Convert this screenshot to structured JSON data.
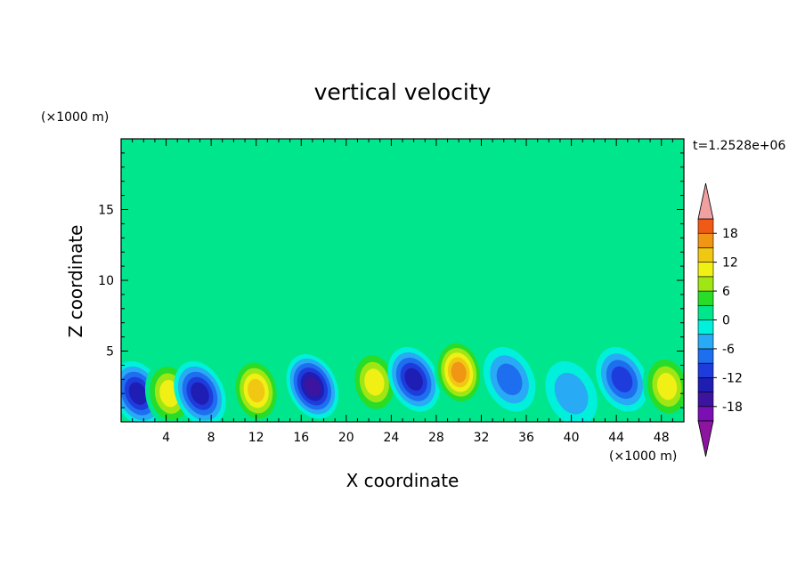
{
  "chart_data": {
    "type": "heatmap",
    "title": "vertical velocity",
    "xlabel": "X coordinate",
    "ylabel": "Z coordinate",
    "x_unit": "(×1000 m)",
    "y_unit": "(×1000 m)",
    "time_label": "t=1.2528e+06",
    "xlim": [
      0,
      50
    ],
    "ylim": [
      0,
      20
    ],
    "x_ticks": [
      "4",
      "8",
      "12",
      "16",
      "20",
      "24",
      "28",
      "32",
      "36",
      "40",
      "44",
      "48"
    ],
    "x_tick_values": [
      4,
      8,
      12,
      16,
      20,
      24,
      28,
      32,
      36,
      40,
      44,
      48
    ],
    "y_ticks": [
      "5",
      "10",
      "15"
    ],
    "y_tick_values": [
      5,
      10,
      15
    ],
    "colorbar": {
      "levels": [
        -21,
        -18,
        -15,
        -12,
        -9,
        -6,
        -3,
        0,
        3,
        6,
        9,
        12,
        15,
        18,
        21
      ],
      "tick_labels": [
        "18",
        "12",
        "6",
        "0",
        "-6",
        "-12",
        "-18"
      ],
      "tick_values": [
        18,
        12,
        6,
        0,
        -6,
        -12,
        -18
      ],
      "colors": [
        "#7c0fb4",
        "#3c14a0",
        "#1e1eb4",
        "#1e3cdc",
        "#1e6ef0",
        "#28aaf5",
        "#00f0dc",
        "#00e68c",
        "#28dc28",
        "#a0e614",
        "#f0f014",
        "#f0c814",
        "#f09614",
        "#f05a14",
        "#e61e1e",
        "#f0a0a0"
      ],
      "below_color": "#8c14a0",
      "above_color": "#f0a0a0"
    },
    "features": [
      {
        "x": 1.5,
        "z": 2.0,
        "w": -12
      },
      {
        "x": 4.3,
        "z": 2.0,
        "w": 10
      },
      {
        "x": 7.0,
        "z": 2.0,
        "w": -14
      },
      {
        "x": 12.0,
        "z": 2.2,
        "w": 12
      },
      {
        "x": 17.0,
        "z": 2.5,
        "w": -15
      },
      {
        "x": 22.5,
        "z": 2.8,
        "w": 9
      },
      {
        "x": 26.0,
        "z": 3.0,
        "w": -13
      },
      {
        "x": 30.0,
        "z": 3.5,
        "w": 16
      },
      {
        "x": 34.5,
        "z": 3.0,
        "w": -6
      },
      {
        "x": 40.0,
        "z": 2.0,
        "w": -5
      },
      {
        "x": 44.5,
        "z": 3.0,
        "w": -11
      },
      {
        "x": 48.5,
        "z": 2.5,
        "w": 9
      }
    ]
  }
}
